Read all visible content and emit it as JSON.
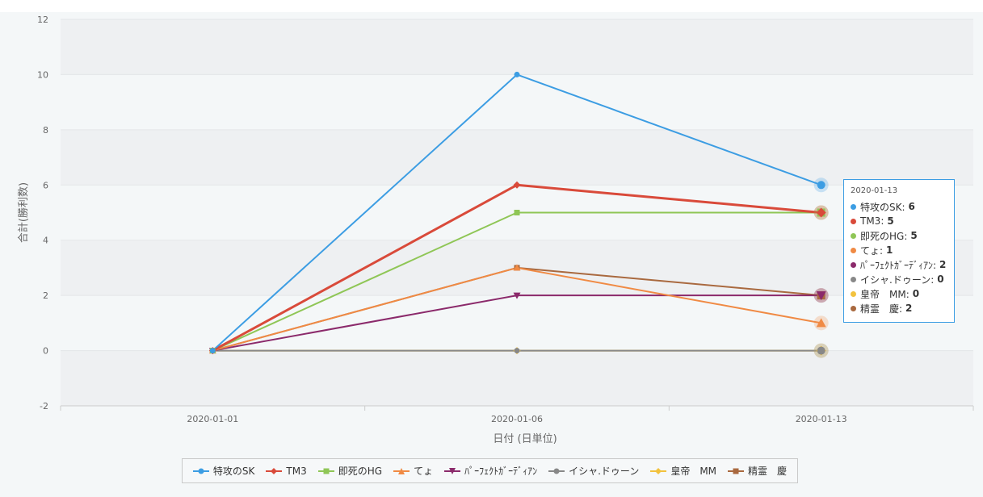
{
  "chart_data": {
    "type": "line",
    "x": [
      "2020-01-01",
      "2020-01-06",
      "2020-01-13"
    ],
    "xlabel": "日付 (日単位)",
    "ylabel": "合計(勝利数)",
    "ylim": [
      -2,
      12
    ],
    "yticks": [
      12,
      10,
      8,
      6,
      4,
      2,
      0,
      -2
    ],
    "grid": true,
    "legend_position": "bottom",
    "series": [
      {
        "name": "特攻のSK",
        "values": [
          0,
          10,
          6
        ],
        "color": "#3c9de3",
        "marker": "circle"
      },
      {
        "name": "TM3",
        "values": [
          0,
          6,
          5
        ],
        "color": "#d94a3a",
        "marker": "diamond"
      },
      {
        "name": "即死のHG",
        "values": [
          0,
          5,
          5
        ],
        "color": "#8fc656",
        "marker": "square"
      },
      {
        "name": "てょ",
        "values": [
          0,
          3,
          1
        ],
        "color": "#f08a44",
        "marker": "triangle"
      },
      {
        "name": "ﾊﾟｰﾌｪｸﾄｶﾞｰﾃﾞｨｱﾝ",
        "values": [
          0,
          2,
          2
        ],
        "color": "#8b2a6b",
        "marker": "triangle-down"
      },
      {
        "name": "イシャ.ドゥーン",
        "values": [
          0,
          0,
          0
        ],
        "color": "#888888",
        "marker": "circle"
      },
      {
        "name": "皇帝　MM",
        "values": [
          0,
          0,
          0
        ],
        "color": "#f2c23e",
        "marker": "diamond"
      },
      {
        "name": "精霊　慶",
        "values": [
          0,
          3,
          2
        ],
        "color": "#a9693f",
        "marker": "square"
      }
    ]
  },
  "tooltip": {
    "title": "2020-01-13",
    "rows": [
      {
        "label": "特攻のSK:",
        "value": "6",
        "color": "#3c9de3"
      },
      {
        "label": "TM3:",
        "value": "5",
        "color": "#d94a3a"
      },
      {
        "label": "即死のHG:",
        "value": "5",
        "color": "#8fc656"
      },
      {
        "label": "てょ:",
        "value": "1",
        "color": "#f08a44"
      },
      {
        "label": "ﾊﾟｰﾌｪｸﾄｶﾞｰﾃﾞｨｱﾝ:",
        "value": "2",
        "color": "#8b2a6b"
      },
      {
        "label": "イシャ.ドゥーン:",
        "value": "0",
        "color": "#888888"
      },
      {
        "label": "皇帝　MM:",
        "value": "0",
        "color": "#f2c23e"
      },
      {
        "label": "精霊　慶:",
        "value": "2",
        "color": "#a9693f"
      }
    ]
  }
}
